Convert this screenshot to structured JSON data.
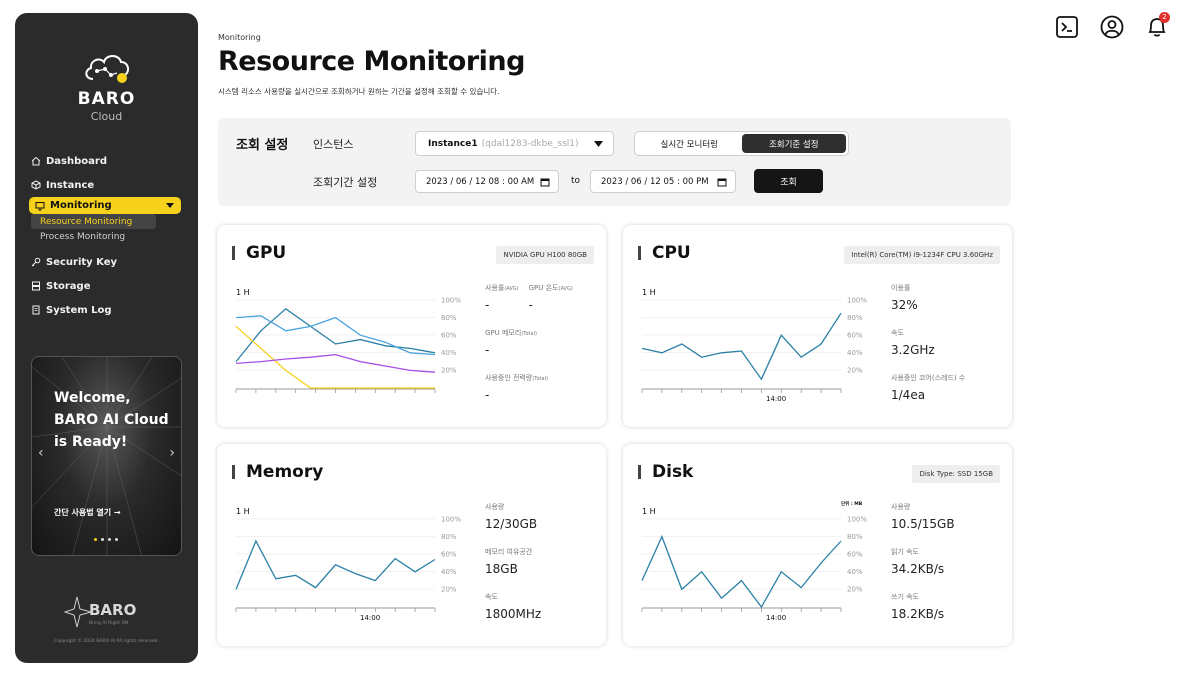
{
  "brand": {
    "name": "BARO",
    "sub": "Cloud",
    "footer_name": "BARO",
    "footer_tag": "Bring AI Right ON",
    "copyright": "Copyright © 2024 BARO AI All rights reserved."
  },
  "nav": {
    "dashboard": "Dashboard",
    "instance": "Instance",
    "monitoring": "Monitoring",
    "sub_resource": "Resource Monitoring",
    "sub_process": "Process Monitoring",
    "security": "Security Key",
    "storage": "Storage",
    "syslog": "System Log"
  },
  "promo": {
    "title": "Welcome, BARO AI Cloud is Ready!",
    "link": "간단 사용법 열기 →",
    "slides": 4,
    "active": 0
  },
  "header": {
    "breadcrumb": "Monitoring",
    "title": "Resource Monitoring",
    "desc": "시스템 리소스 사용량을 실시간으로 조회하거나 원하는 기간을 설정해 조회할 수 있습니다."
  },
  "top_icons": [
    "terminal-icon",
    "user-icon",
    "bell-icon"
  ],
  "notif_count": "2",
  "filter": {
    "title": "조회 설정",
    "instance_label": "인스턴스",
    "instance_name": "Instance1",
    "instance_id": "(qdal1283-dkbe_ssl1)",
    "mode_realtime": "실시간 모니터링",
    "mode_period": "조회기준 설정",
    "period_label": "조회기간 설정",
    "start": "2023 / 06 / 12  08 : 00 AM",
    "to": "to",
    "end": "2023 / 06 / 12  05 : 00 PM",
    "query": "조회"
  },
  "cards": {
    "gpu": {
      "title": "GPU",
      "chip": "NVIDIA GPU H100 80GB",
      "range": "1 H",
      "l1": "사용률",
      "l1s": "(AVG)",
      "v1": "-",
      "l2": "GPU 온도",
      "l2s": "(AVG)",
      "v2": "-",
      "l3": "GPU 메모리",
      "l3s": "(Total)",
      "v3": "-",
      "l4": "사용중인 전력량",
      "l4s": "(Total)",
      "v4": "-"
    },
    "cpu": {
      "title": "CPU",
      "chip": "Intel(R) Core(TM) i9-1234F CPU 3.60GHz",
      "range": "1 H",
      "time": "14:00",
      "l1": "이용률",
      "v1": "32%",
      "l2": "속도",
      "v2": "3.2GHz",
      "l3": "사용중인 코어(스레드) 수",
      "v3": "1/4ea"
    },
    "memory": {
      "title": "Memory",
      "range": "1 H",
      "time": "14:00",
      "l1": "사용량",
      "v1": "12/30GB",
      "l2": "메모리 여유공간",
      "v2": "18GB",
      "l3": "속도",
      "v3": "1800MHz"
    },
    "disk": {
      "title": "Disk",
      "chip": "Disk Type: SSD 15GB",
      "range": "1 H",
      "time": "14:00",
      "unit": "단위 : MB",
      "l1": "사용량",
      "v1": "10.5/15GB",
      "l2": "읽기 속도",
      "v2": "34.2KB/s",
      "l3": "쓰기 속도",
      "v3": "18.2KB/s"
    }
  },
  "axis_ticks": [
    "100%",
    "80%",
    "60%",
    "40%",
    "20%"
  ],
  "colors": {
    "accent": "#f7d21c",
    "sidebar": "#2b2b2b",
    "line_teal": "#2a7fa5",
    "line_blue": "#4aa3df",
    "line_purple": "#a64ee8",
    "line_yellow": "#f7d21c"
  },
  "chart_data": [
    {
      "type": "line",
      "title": "GPU",
      "ylim": [
        0,
        100
      ],
      "series": [
        {
          "values": [
            30,
            65,
            90,
            70,
            50,
            55,
            48,
            45,
            40
          ]
        },
        {
          "values": [
            80,
            82,
            65,
            70,
            80,
            60,
            52,
            40,
            38
          ]
        },
        {
          "values": [
            70,
            45,
            20,
            0,
            0,
            0,
            0,
            0,
            0
          ]
        },
        {
          "values": [
            28,
            30,
            33,
            35,
            38,
            30,
            25,
            20,
            18
          ]
        }
      ]
    },
    {
      "type": "line",
      "title": "CPU",
      "ylim": [
        0,
        100
      ],
      "series": [
        {
          "values": [
            45,
            40,
            50,
            35,
            40,
            42,
            10,
            60,
            35,
            50,
            85
          ]
        }
      ]
    },
    {
      "type": "line",
      "title": "Memory",
      "ylim": [
        0,
        100
      ],
      "series": [
        {
          "values": [
            20,
            75,
            32,
            36,
            22,
            48,
            38,
            30,
            55,
            40,
            54
          ]
        }
      ]
    },
    {
      "type": "line",
      "title": "Disk",
      "ylim": [
        0,
        100
      ],
      "series": [
        {
          "values": [
            30,
            80,
            20,
            40,
            10,
            30,
            0,
            40,
            22,
            50,
            75
          ]
        }
      ]
    }
  ]
}
